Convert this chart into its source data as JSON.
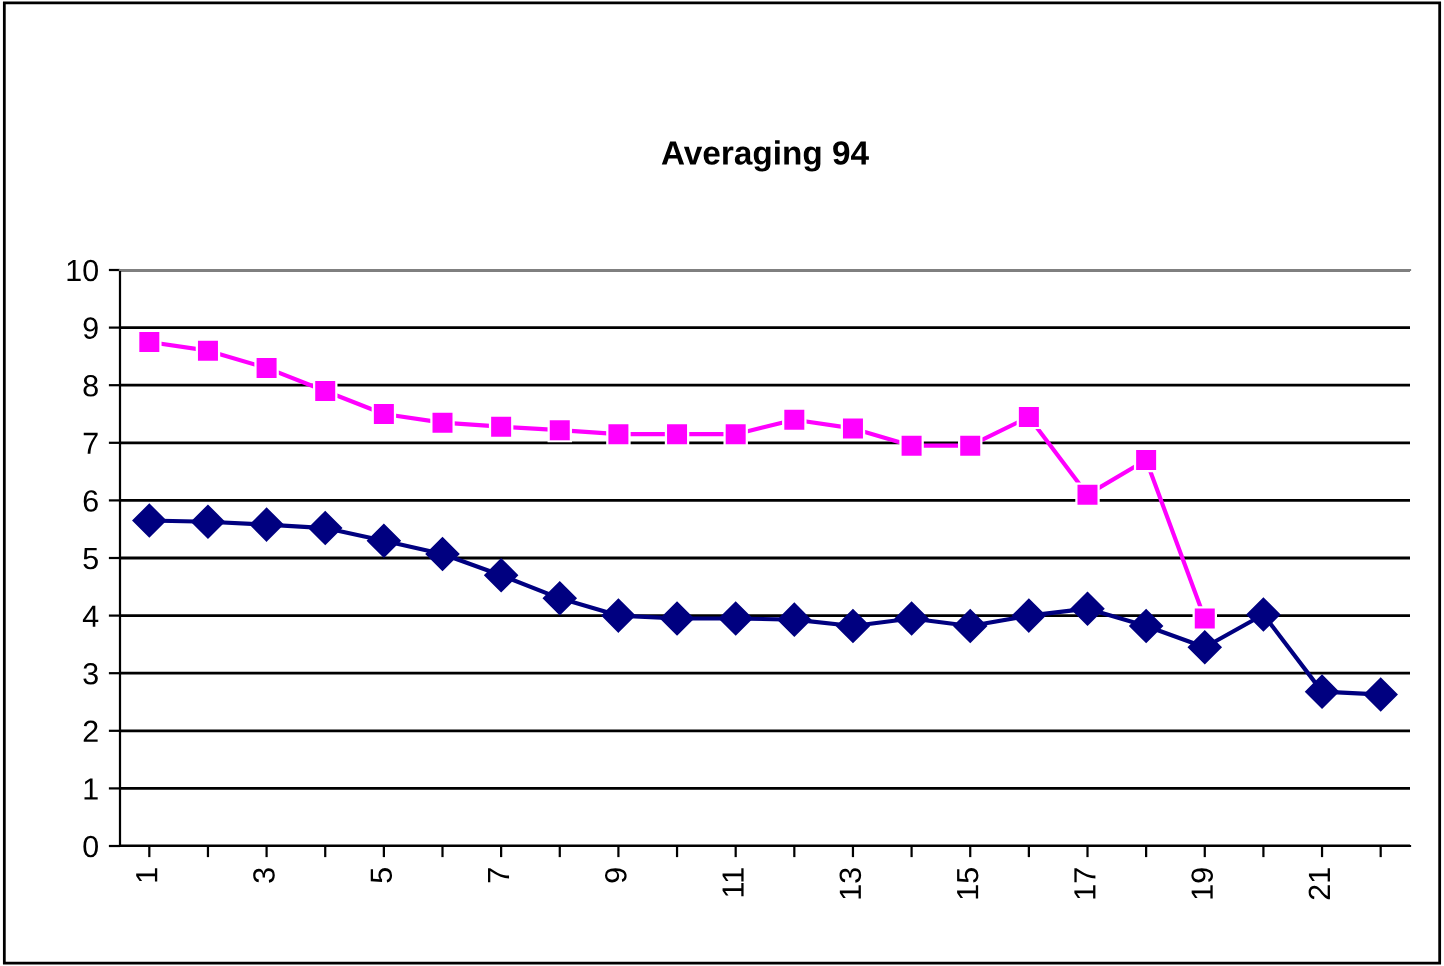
{
  "chart_data": {
    "type": "line",
    "title": "Averaging 94",
    "categories": [
      "1",
      null,
      "3",
      null,
      "5",
      null,
      "7",
      null,
      "9",
      null,
      "11",
      null,
      "13",
      null,
      "15",
      null,
      "17",
      null,
      "19",
      null,
      "21",
      null
    ],
    "series": [
      {
        "color": "#ff00ff",
        "marker": "square",
        "values": [
          8.75,
          8.6,
          8.3,
          7.9,
          7.5,
          7.35,
          7.28,
          7.22,
          7.15,
          7.15,
          7.15,
          7.4,
          7.25,
          6.95,
          6.95,
          7.45,
          6.1,
          6.7,
          3.95,
          null,
          null,
          null
        ]
      },
      {
        "color": "#000080",
        "marker": "diamond",
        "values": [
          5.65,
          5.63,
          5.58,
          5.52,
          5.3,
          5.07,
          4.7,
          4.3,
          4.0,
          3.95,
          3.95,
          3.93,
          3.82,
          3.95,
          3.82,
          4.0,
          4.12,
          3.82,
          3.45,
          4.02,
          2.68,
          2.63
        ]
      }
    ],
    "ylim": [
      0,
      10
    ],
    "yticks": [
      0,
      1,
      2,
      3,
      4,
      5,
      6,
      7,
      8,
      9,
      10
    ],
    "grid": "y",
    "legend": false
  }
}
